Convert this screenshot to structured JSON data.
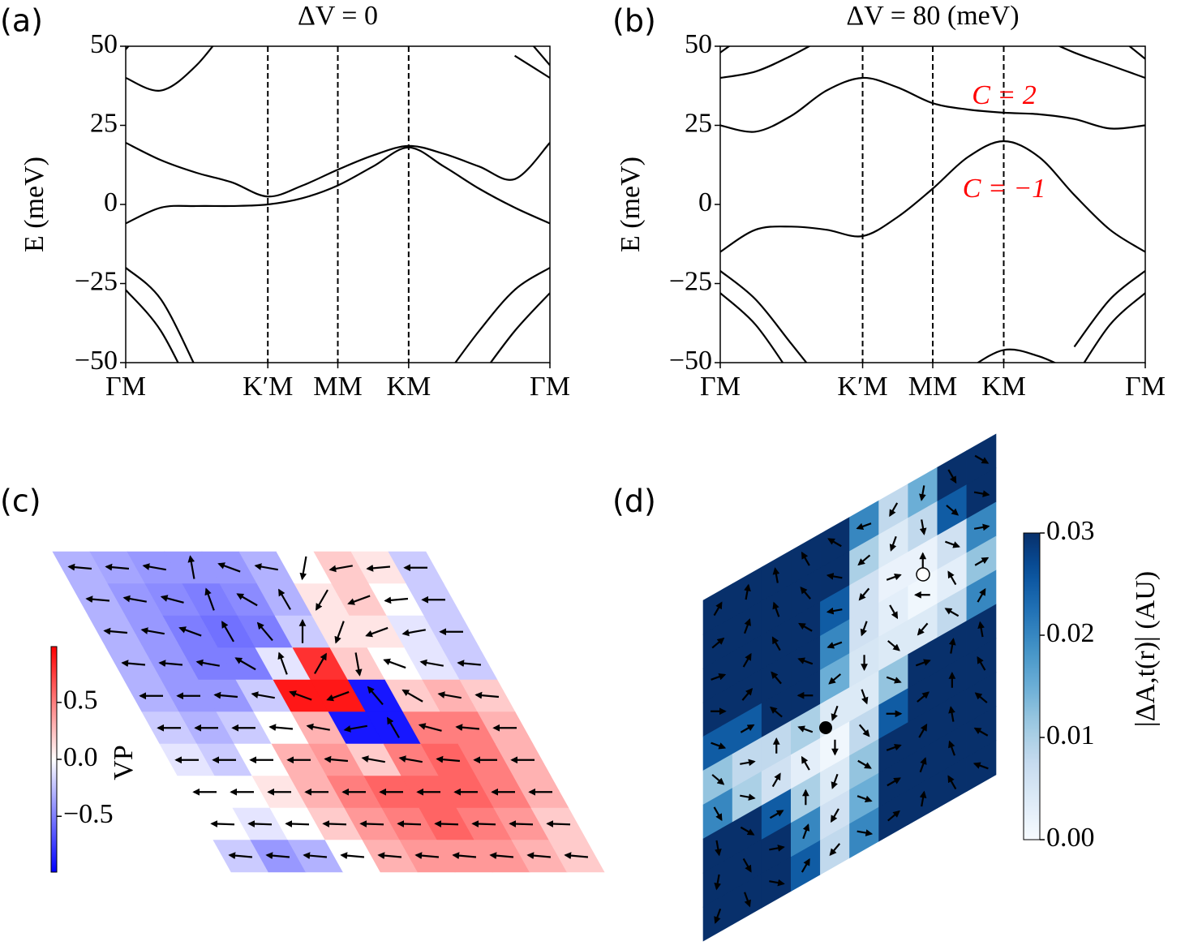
{
  "chart_data": [
    {
      "type": "line",
      "panel_label": "(a)",
      "title": "ΔV = 0",
      "ylabel": "E (meV)",
      "color": "#000000",
      "xgrid_dashed": true,
      "x": [
        0,
        0.083,
        0.167,
        0.25,
        0.335,
        0.417,
        0.5,
        0.583,
        0.667,
        0.75,
        0.833,
        0.917,
        1
      ],
      "xlim": [
        0,
        1
      ],
      "xticks": [
        {
          "value": 0,
          "label": "ΓM"
        },
        {
          "value": 0.335,
          "label": "K′M"
        },
        {
          "value": 0.5,
          "label": "MM"
        },
        {
          "value": 0.667,
          "label": "KM"
        },
        {
          "value": 1,
          "label": "ΓM"
        }
      ],
      "ylim": [
        -50,
        50
      ],
      "yticks": [
        50,
        25,
        0,
        {
          "value": -25,
          "label": "−25"
        },
        {
          "value": -50,
          "label": "−50"
        }
      ],
      "series": [
        {
          "values": [
            19.5,
            14,
            10,
            7,
            2.5,
            6,
            11,
            15.5,
            18.5,
            16,
            12,
            8,
            19.5
          ]
        },
        {
          "values": [
            -6,
            -1,
            -0.5,
            -0.5,
            0,
            2,
            6,
            12,
            18,
            12,
            5,
            -1,
            -6
          ]
        },
        {
          "values": [
            40,
            36,
            44,
            58,
            null,
            null,
            null,
            null,
            null,
            null,
            null,
            47,
            40
          ]
        },
        {
          "values": [
            49,
            62,
            null,
            null,
            null,
            null,
            null,
            null,
            null,
            null,
            null,
            57,
            44
          ]
        },
        {
          "values": [
            -20,
            -30,
            -52,
            null,
            null,
            null,
            null,
            null,
            null,
            -55,
            -40,
            -27,
            -20
          ]
        },
        {
          "values": [
            -27,
            -40,
            -62,
            null,
            null,
            null,
            null,
            null,
            null,
            null,
            -55,
            -40,
            -28
          ]
        }
      ]
    },
    {
      "type": "line",
      "panel_label": "(b)",
      "title": "ΔV = 80 (meV)",
      "ylabel": "E (meV)",
      "color": "#000000",
      "xgrid_dashed": true,
      "x": [
        0,
        0.083,
        0.167,
        0.25,
        0.335,
        0.417,
        0.5,
        0.583,
        0.667,
        0.75,
        0.833,
        0.917,
        1
      ],
      "xlim": [
        0,
        1
      ],
      "xticks": [
        {
          "value": 0,
          "label": "ΓM"
        },
        {
          "value": 0.335,
          "label": "K′M"
        },
        {
          "value": 0.5,
          "label": "MM"
        },
        {
          "value": 0.667,
          "label": "KM"
        },
        {
          "value": 1,
          "label": "ΓM"
        }
      ],
      "ylim": [
        -50,
        50
      ],
      "yticks": [
        50,
        25,
        0,
        {
          "value": -25,
          "label": "−25"
        },
        {
          "value": -50,
          "label": "−50"
        }
      ],
      "annotations": [
        {
          "text": "C = 2",
          "color": "#ff0000"
        },
        {
          "text": "C = −1",
          "color": "#ff0000"
        }
      ],
      "series": [
        {
          "values": [
            25,
            23,
            28,
            36,
            40,
            37,
            32,
            30,
            29,
            28.5,
            27,
            24,
            25
          ]
        },
        {
          "values": [
            -15,
            -8,
            -7,
            -8,
            -10,
            -4,
            5,
            15,
            20,
            15,
            3,
            -8,
            -15
          ]
        },
        {
          "values": [
            40,
            42,
            47,
            53,
            null,
            null,
            null,
            null,
            null,
            53,
            48,
            44,
            40
          ]
        },
        {
          "values": [
            48,
            56,
            null,
            null,
            null,
            null,
            null,
            null,
            null,
            null,
            null,
            55,
            46
          ]
        },
        {
          "values": [
            -21,
            -30,
            -44,
            -58,
            null,
            null,
            null,
            null,
            null,
            null,
            -45,
            -30,
            -21
          ]
        },
        {
          "values": [
            -28,
            -38,
            -54,
            null,
            null,
            null,
            null,
            null,
            null,
            null,
            -55,
            -38,
            -28
          ]
        },
        {
          "values": [
            null,
            null,
            null,
            null,
            null,
            null,
            null,
            -52,
            -46,
            -48,
            -53,
            null,
            null
          ]
        }
      ]
    },
    {
      "type": "heatmap",
      "panel_label": "(c)",
      "colormap": "bwr",
      "cbar_label": "VP",
      "vlim": [
        -0.99,
        0.99
      ],
      "cbar_ticks": [
        0.5,
        {
          "value": 0,
          "label": "0.0"
        },
        {
          "value": -0.5,
          "label": "−0.5"
        }
      ],
      "values": [
        [
          -0.3,
          -0.35,
          -0.4,
          -0.4,
          -0.4,
          -0.3,
          0,
          0.2,
          0.1,
          -0.2
        ],
        [
          -0.3,
          -0.4,
          -0.45,
          -0.5,
          -0.45,
          -0.3,
          0.1,
          0.2,
          0,
          -0.2
        ],
        [
          -0.3,
          -0.4,
          -0.5,
          -0.55,
          -0.5,
          -0.2,
          0.1,
          0.1,
          -0.1,
          -0.2
        ],
        [
          -0.3,
          -0.4,
          -0.5,
          -0.5,
          -0.1,
          0.8,
          0.2,
          0,
          -0.1,
          -0.2
        ],
        [
          -0.3,
          -0.4,
          -0.4,
          -0.2,
          0.9,
          0.9,
          -0.9,
          0.2,
          0.3,
          0.2
        ],
        [
          -0.2,
          -0.3,
          -0.2,
          0,
          0.3,
          -0.9,
          -0.9,
          0.5,
          0.5,
          0.3
        ],
        [
          -0.1,
          -0.2,
          0,
          0.3,
          0.4,
          0.2,
          0.5,
          0.6,
          0.5,
          0.3
        ],
        [
          0,
          0,
          0.1,
          0.3,
          0.5,
          0.6,
          0.6,
          0.6,
          0.5,
          0.3
        ],
        [
          0,
          -0.1,
          0,
          0.2,
          0.4,
          0.5,
          0.6,
          0.5,
          0.4,
          0.2
        ],
        [
          -0.2,
          -0.4,
          -0.3,
          0,
          0.3,
          0.4,
          0.4,
          0.4,
          0.3,
          0.2
        ]
      ],
      "angles": [
        [
          175,
          175,
          170,
          100,
          160,
          170,
          260,
          190,
          185,
          180
        ],
        [
          175,
          170,
          165,
          110,
          150,
          120,
          240,
          200,
          185,
          180
        ],
        [
          175,
          170,
          160,
          120,
          130,
          90,
          250,
          200,
          190,
          180
        ],
        [
          175,
          175,
          170,
          150,
          110,
          60,
          280,
          160,
          170,
          175
        ],
        [
          180,
          180,
          175,
          170,
          160,
          200,
          130,
          150,
          170,
          175
        ],
        [
          180,
          180,
          180,
          175,
          170,
          190,
          120,
          165,
          175,
          180
        ],
        [
          180,
          180,
          180,
          180,
          175,
          170,
          170,
          175,
          180,
          180
        ],
        [
          180,
          180,
          180,
          180,
          180,
          180,
          180,
          180,
          180,
          180
        ],
        [
          178,
          178,
          178,
          178,
          178,
          178,
          178,
          178,
          178,
          178
        ],
        [
          175,
          175,
          175,
          175,
          175,
          175,
          175,
          175,
          175,
          175
        ]
      ]
    },
    {
      "type": "heatmap",
      "panel_label": "(d)",
      "colormap": "Blues",
      "cbar_label": "|ΔA,t(r)| (AU)",
      "vlim": [
        0,
        0.03
      ],
      "cbar_ticks": [
        {
          "value": 0,
          "label": "0.00"
        },
        {
          "value": 0.01,
          "label": "0.01"
        },
        {
          "value": 0.02,
          "label": "0.02"
        },
        {
          "value": 0.03,
          "label": "0.03"
        }
      ],
      "values": [
        [
          0.03,
          0.03,
          0.03,
          0.03,
          0.03,
          0.02,
          0.008,
          0.015,
          0.03,
          0.03
        ],
        [
          0.03,
          0.03,
          0.03,
          0.03,
          0.03,
          0.01,
          0.004,
          0.008,
          0.025,
          0.03
        ],
        [
          0.03,
          0.03,
          0.03,
          0.03,
          0.025,
          0.006,
          0.002,
          0.002,
          0.006,
          0.02
        ],
        [
          0.03,
          0.03,
          0.03,
          0.03,
          0.02,
          0.006,
          0.003,
          0.001,
          0.003,
          0.012
        ],
        [
          0.025,
          0.025,
          0.03,
          0.03,
          0.015,
          0.005,
          0.004,
          0.004,
          0.008,
          0.02
        ],
        [
          0.012,
          0.008,
          0.008,
          0.01,
          0.004,
          0.004,
          0.012,
          0.03,
          0.03,
          0.03
        ],
        [
          0.02,
          0.01,
          0.006,
          0.003,
          0.001,
          0.008,
          0.025,
          0.03,
          0.03,
          0.03
        ],
        [
          0.03,
          0.03,
          0.025,
          0.01,
          0.004,
          0.012,
          0.03,
          0.03,
          0.03,
          0.03
        ],
        [
          0.03,
          0.03,
          0.03,
          0.02,
          0.006,
          0.015,
          0.03,
          0.03,
          0.03,
          0.03
        ],
        [
          0.03,
          0.03,
          0.03,
          0.025,
          0.008,
          0.02,
          0.03,
          0.03,
          0.03,
          0.03
        ]
      ],
      "angles": [
        [
          60,
          80,
          100,
          120,
          150,
          200,
          240,
          260,
          300,
          330
        ],
        [
          40,
          70,
          110,
          130,
          170,
          220,
          250,
          280,
          320,
          350
        ],
        [
          20,
          60,
          120,
          150,
          190,
          230,
          20,
          90,
          340,
          10
        ],
        [
          0,
          50,
          130,
          160,
          200,
          250,
          300,
          180,
          120,
          30
        ],
        [
          340,
          30,
          140,
          180,
          220,
          270,
          320,
          230,
          150,
          60
        ],
        [
          320,
          10,
          90,
          160,
          250,
          290,
          340,
          20,
          80,
          100
        ],
        [
          300,
          350,
          60,
          120,
          270,
          310,
          0,
          40,
          90,
          120
        ],
        [
          280,
          330,
          30,
          90,
          250,
          330,
          20,
          60,
          100,
          140
        ],
        [
          260,
          300,
          10,
          70,
          240,
          340,
          30,
          70,
          110,
          150
        ],
        [
          250,
          290,
          350,
          60,
          230,
          350,
          40,
          80,
          120,
          160
        ]
      ]
    }
  ]
}
